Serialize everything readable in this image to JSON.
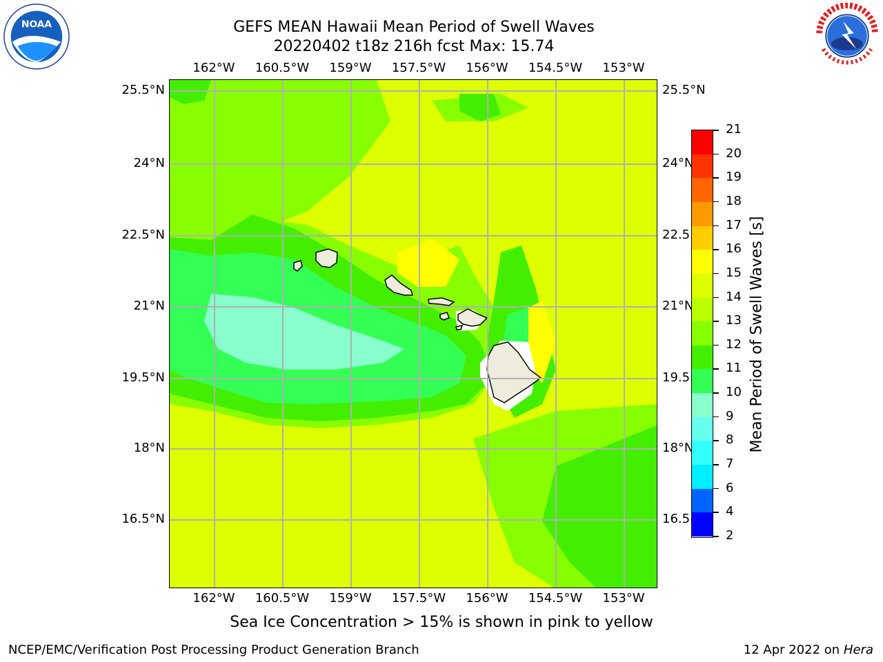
{
  "title": "GEFS MEAN Hawaii Mean Period of Swell Waves",
  "subtitle": "20220402 t18z 216h fcst   Max: 15.74",
  "logos": {
    "left": "NOAA",
    "right": "NATIONAL WEATHER SERVICE"
  },
  "axes": {
    "lon_ticks": [
      "162°W",
      "160.5°W",
      "159°W",
      "157.5°W",
      "156°W",
      "154.5°W",
      "153°W"
    ],
    "lat_ticks": [
      "25.5°N",
      "24°N",
      "22.5°N",
      "21°N",
      "19.5°N",
      "18°N",
      "16.5°N"
    ],
    "lat_ticks_right": [
      "25.5°N",
      "24°N",
      "22.5",
      "21°N",
      "19.5",
      "18°N",
      "16.5"
    ]
  },
  "colorbar": {
    "label": "Mean Period of Swell Waves [s]",
    "ticks": [
      "21",
      "20",
      "19",
      "18",
      "17",
      "16",
      "15",
      "14",
      "13",
      "12",
      "11",
      "10",
      "9",
      "8",
      "7",
      "6",
      "4",
      "2"
    ],
    "colors": [
      "#ff0000",
      "#ff3300",
      "#ff6600",
      "#ff9900",
      "#ffcc00",
      "#ffff00",
      "#ddff00",
      "#bbff00",
      "#88ff00",
      "#44ee00",
      "#33ff55",
      "#88ffcc",
      "#66ffee",
      "#33ffff",
      "#00eeff",
      "#0066ff",
      "#0000ff"
    ]
  },
  "field_colors": {
    "base": "#ddff00",
    "c13": "#88ff00",
    "c12": "#44ee00",
    "c11": "#33ff55",
    "c10": "#88ffcc",
    "c15": "#ffff00",
    "land": "#eeecdc",
    "mask": "#ffffff"
  },
  "note": "Sea Ice Concentration > 15% is shown in pink to yellow",
  "footer_left": "NCEP/EMC/Verification Post Processing Product Generation Branch",
  "footer_right_date": "12 Apr 2022 on",
  "footer_right_host": "Hera"
}
